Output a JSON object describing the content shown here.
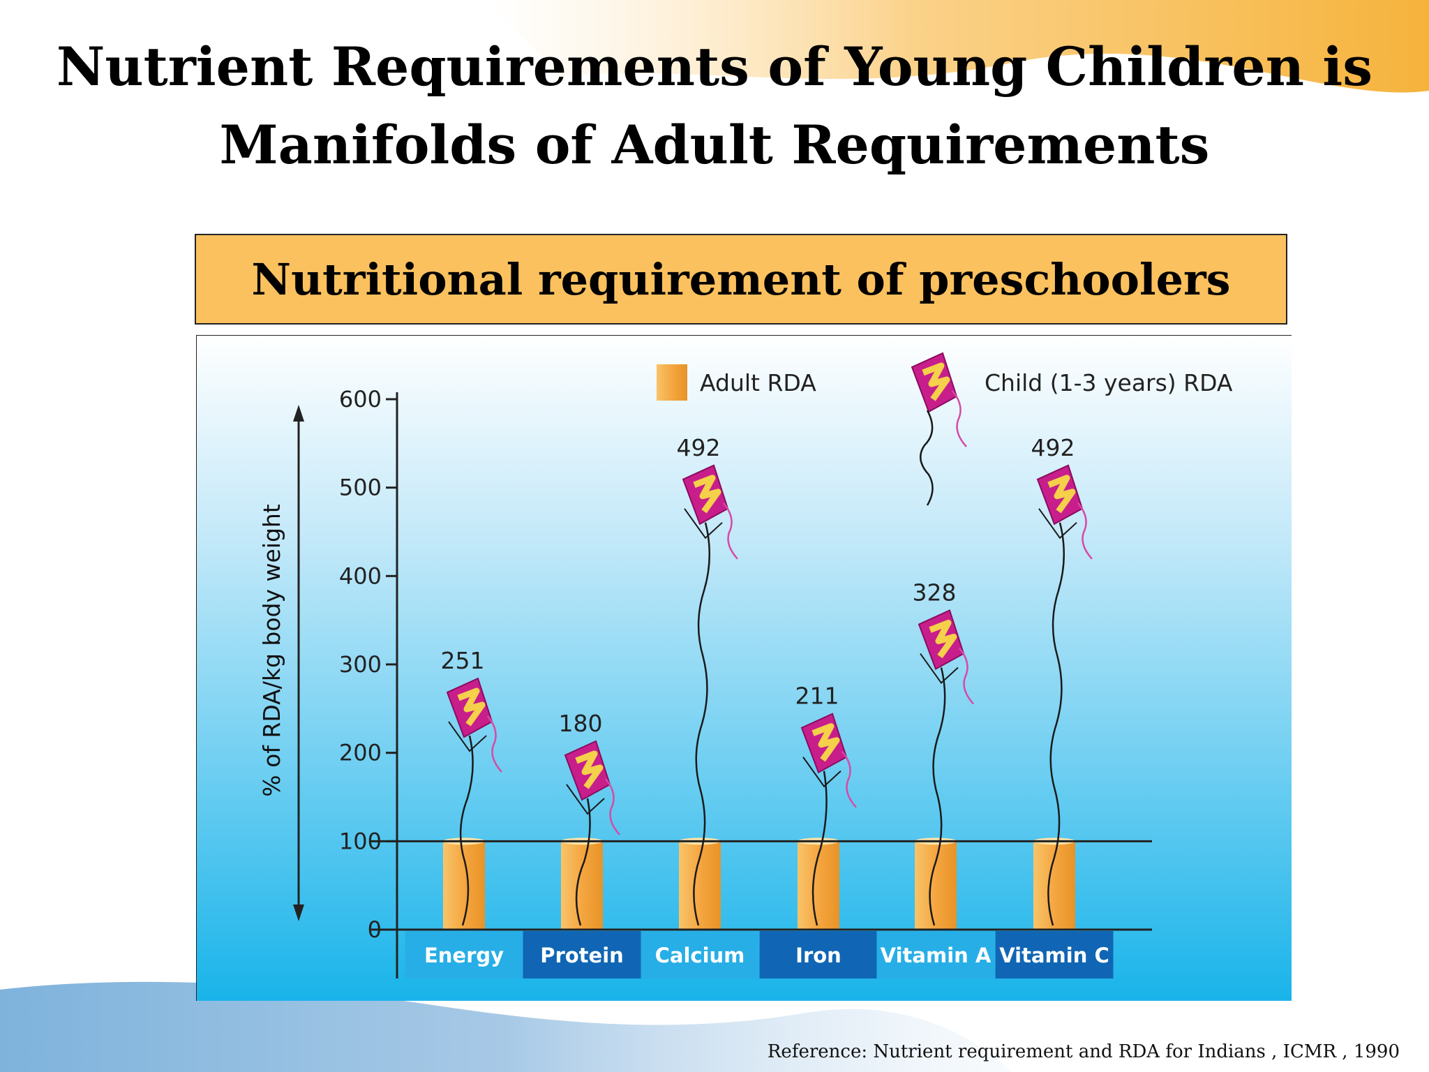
{
  "slide": {
    "title_line1": "Nutrient Requirements of Young Children is",
    "title_line2": "Manifolds of Adult Requirements",
    "reference": "Reference: Nutrient requirement and RDA for Indians , ICMR , 1990"
  },
  "colors": {
    "accent_gold": "#f6b33c",
    "banner": "#fbc15e",
    "wave_blue": "#7fb3dc",
    "chart_bg_top": "#ffffff",
    "chart_bg_bottom": "#19b4ea",
    "bar_orange": "#f5a640",
    "kite_magenta": "#c81e8c",
    "kite_yellow": "#f5d04a",
    "label_band_light": "#27aee6",
    "label_band_dark": "#1066b4"
  },
  "chart_data": {
    "type": "bar",
    "title": "Nutritional requirement of preschoolers",
    "ylabel": "% of RDA/kg body weight",
    "xlabel": "",
    "ylim": [
      0,
      600
    ],
    "yticks": [
      0,
      100,
      200,
      300,
      400,
      500,
      600
    ],
    "categories": [
      "Energy",
      "Protein",
      "Calcium",
      "Iron",
      "Vitamin A",
      "Vitamin C"
    ],
    "legend_position": "top",
    "series": [
      {
        "name": "Adult RDA",
        "marker": "bar",
        "values": [
          100,
          100,
          100,
          100,
          100,
          100
        ]
      },
      {
        "name": "Child (1-3 years) RDA",
        "marker": "kite",
        "values": [
          251,
          180,
          492,
          211,
          328,
          492
        ]
      }
    ]
  }
}
